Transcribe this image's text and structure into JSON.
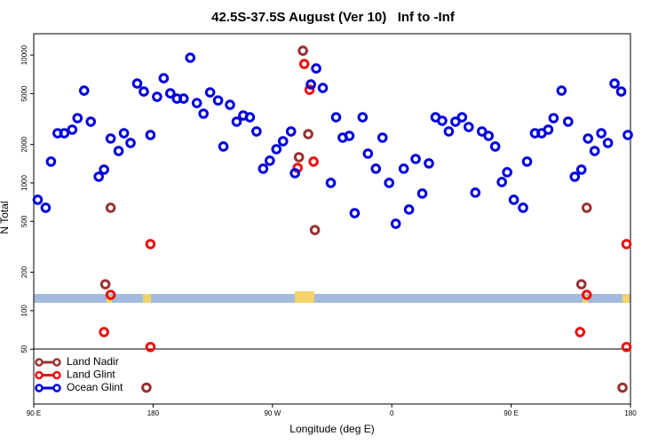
{
  "chart_data": {
    "type": "scatter",
    "title": "42.5S-37.5S August (Ver 10)   Inf to -Inf",
    "xlabel": "Longitude (deg E)",
    "ylabel": "N Total",
    "log_y": true,
    "legend": "lower left",
    "xlim": [
      90,
      540
    ],
    "ylim": [
      18.6,
      14700
    ],
    "xticks": [
      {
        "value": 90,
        "label": "90 E"
      },
      180,
      {
        "value": 270,
        "label": "90 W"
      },
      {
        "value": 360,
        "label": "0"
      },
      {
        "value": 450,
        "label": "90 E"
      },
      {
        "value": 540,
        "label": "180"
      }
    ],
    "yticks": [
      50,
      100,
      200,
      500,
      1000,
      2000,
      5000,
      10000
    ],
    "series": [
      {
        "name": "Land Nadir",
        "color": "#993333",
        "x": [
          144,
          148,
          175,
          290,
          293,
          297,
          302,
          503,
          507,
          534
        ],
        "values": [
          161,
          639,
          25,
          1589,
          10830,
          2408,
          428,
          161,
          639,
          25
        ]
      },
      {
        "name": "Land Glint",
        "color": "#ee1111",
        "x": [
          143,
          148,
          178,
          178,
          289,
          294,
          298,
          301,
          502,
          507,
          537,
          537
        ],
        "values": [
          68,
          133,
          332,
          52,
          1312,
          8525,
          5356,
          1468,
          68,
          133,
          332,
          52
        ]
      },
      {
        "name": "Ocean Glint",
        "color": "#0000dd",
        "x": [
          93,
          99,
          103,
          108,
          113,
          119,
          123,
          128,
          133,
          139,
          143,
          148,
          154,
          158,
          163,
          168,
          173,
          178,
          183,
          188,
          193,
          198,
          203,
          208,
          213,
          218,
          223,
          229,
          233,
          238,
          243,
          248,
          253,
          258,
          263,
          268,
          273,
          278,
          284,
          287,
          299,
          303,
          308,
          314,
          318,
          323,
          328,
          332,
          338,
          342,
          348,
          353,
          358,
          363,
          369,
          373,
          378,
          383,
          388,
          393,
          398,
          403,
          408,
          413,
          418,
          423,
          428,
          433,
          438,
          443,
          447,
          452,
          459,
          462,
          468,
          473,
          478,
          482,
          488,
          493,
          498,
          503,
          508,
          513,
          518,
          523,
          528,
          533,
          538
        ],
        "values": [
          738,
          639,
          1468,
          2448,
          2448,
          2610,
          3214,
          5275,
          3014,
          1118,
          1271,
          2225,
          1778,
          2448,
          2054,
          5995,
          5190,
          2371,
          4717,
          6597,
          5025,
          4567,
          4567,
          9532,
          4217,
          3481,
          5108,
          4418,
          1927,
          4084,
          3014,
          3371,
          3264,
          2528,
          1292,
          1492,
          1836,
          2120,
          2528,
          1192,
          5899,
          7868,
          5534,
          1000,
          3264,
          2260,
          2334,
          580,
          3264,
          1695,
          1292,
          2260,
          1000,
          479,
          1292,
          619,
          1540,
          826,
          1422,
          3264,
          3063,
          2528,
          3014,
          3264,
          2738,
          839,
          2528,
          2334,
          1927,
          1016,
          1212,
          738,
          639,
          1468,
          2448,
          2448,
          2610,
          3214,
          5275,
          3014,
          1118,
          1271,
          2225,
          1778,
          2448,
          2054,
          5995,
          5190,
          2371
        ]
      }
    ]
  }
}
